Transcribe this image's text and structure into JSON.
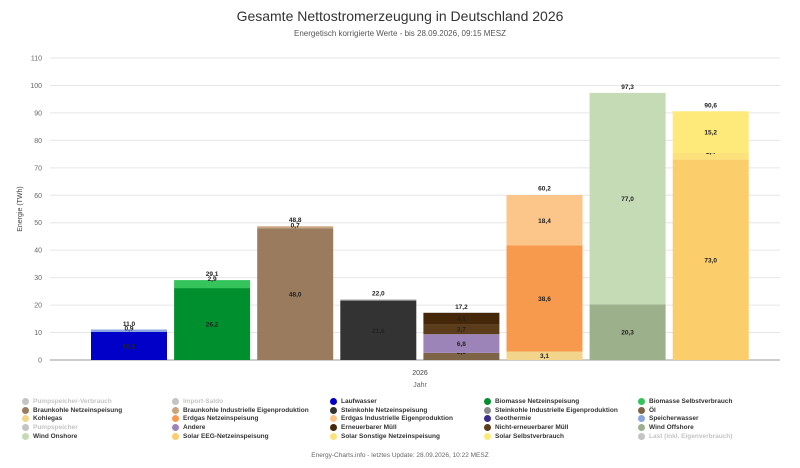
{
  "chart_data": {
    "type": "bar",
    "stacked": true,
    "title": "Gesamte Nettostromerzeugung in Deutschland 2026",
    "subtitle": "Energetisch korrigierte Werte - bis 28.09.2026, 09:15 MESZ",
    "xlabel": "Jahr",
    "ylabel": "Energie (TWh)",
    "categories": [
      "2026"
    ],
    "ylim": [
      0,
      110
    ],
    "yticks": [
      0,
      10,
      20,
      30,
      40,
      50,
      60,
      70,
      80,
      90,
      100,
      110
    ],
    "grid": true,
    "bars": [
      {
        "name": "Laufwasser",
        "total": 11.0,
        "total_label": "11,0",
        "segments": [
          {
            "series": "Laufwasser",
            "value": 10.2,
            "label": "10,2",
            "color": "#0000c8"
          },
          {
            "series": "Speicherwasser",
            "value": 0.9,
            "label": "0,9",
            "color": "#8aa6e0"
          }
        ]
      },
      {
        "name": "Biomasse",
        "total": 29.1,
        "total_label": "29,1",
        "segments": [
          {
            "series": "Biomasse Netzeinspeisung",
            "value": 26.2,
            "label": "26,2",
            "color": "#008f2e"
          },
          {
            "series": "Biomasse Selbstverbrauch",
            "value": 2.9,
            "label": "2,9",
            "color": "#35c35b"
          }
        ]
      },
      {
        "name": "Braunkohle",
        "total": 48.8,
        "total_label": "48,8",
        "segments": [
          {
            "series": "Braunkohle Netzeinspeisung",
            "value": 48.0,
            "label": "48,0",
            "color": "#9a7b5e"
          },
          {
            "series": "Braunkohle Industrielle Eigenproduktion",
            "value": 0.7,
            "label": "0,7",
            "color": "#c9a57d"
          }
        ]
      },
      {
        "name": "Steinkohle",
        "total": 22.0,
        "total_label": "22,0",
        "segments": [
          {
            "series": "Steinkohle Netzeinspeisung",
            "value": 21.6,
            "label": "21,6",
            "color": "#333333"
          },
          {
            "series": "Steinkohle Industrielle Eigenproduktion",
            "value": 0.4,
            "label": "",
            "color": "#888888"
          }
        ]
      },
      {
        "name": "Andere",
        "total": 17.2,
        "total_label": "17,2",
        "segments": [
          {
            "series": "Öl",
            "value": 2.6,
            "label": "2,6",
            "color": "#7d6446"
          },
          {
            "series": "Andere",
            "value": 6.8,
            "label": "6,8",
            "color": "#9d84b8"
          },
          {
            "series": "Nicht-erneuerbarer Müll",
            "value": 3.7,
            "label": "3,7",
            "color": "#5b3d1c"
          },
          {
            "series": "Erneuerbarer Müll",
            "value": 4.1,
            "label": "4,1",
            "color": "#45280a"
          }
        ]
      },
      {
        "name": "Erdgas",
        "total": 60.2,
        "total_label": "60,2",
        "segments": [
          {
            "series": "Kohlegas",
            "value": 3.1,
            "label": "3,1",
            "color": "#f2d48a"
          },
          {
            "series": "Erdgas Netzeinspeisung",
            "value": 38.6,
            "label": "38,6",
            "color": "#f89a4e"
          },
          {
            "series": "Erdgas Industrielle Eigenproduktion",
            "value": 18.4,
            "label": "18,4",
            "color": "#fcc68a"
          }
        ]
      },
      {
        "name": "Wind",
        "total": 97.3,
        "total_label": "97,3",
        "segments": [
          {
            "series": "Wind Offshore",
            "value": 20.3,
            "label": "20,3",
            "color": "#9db08c"
          },
          {
            "series": "Wind Onshore",
            "value": 77.0,
            "label": "77,0",
            "color": "#c4dbb5"
          }
        ]
      },
      {
        "name": "Solar",
        "total": 90.6,
        "total_label": "90,6",
        "segments": [
          {
            "series": "Solar EEG-Netzeinspeisung",
            "value": 73.0,
            "label": "73,0",
            "color": "#fccd6b"
          },
          {
            "series": "Solar Sonstige Netzeinspeisung",
            "value": 2.4,
            "label": "2,4",
            "color": "#fde27b"
          },
          {
            "series": "Solar Selbstverbrauch",
            "value": 15.2,
            "label": "15,2",
            "color": "#fdea7a"
          }
        ]
      }
    ],
    "legend": [
      {
        "label": "Pumpspeicher-Verbrauch",
        "color": "#c4c4c4",
        "dim": true
      },
      {
        "label": "Import-Saldo",
        "color": "#c4c4c4",
        "dim": true
      },
      {
        "label": "Laufwasser",
        "color": "#0000c8"
      },
      {
        "label": "Biomasse Netzeinspeisung",
        "color": "#008f2e"
      },
      {
        "label": "Biomasse Selbstverbrauch",
        "color": "#35c35b"
      },
      {
        "label": "Braunkohle Netzeinspeisung",
        "color": "#9a7b5e"
      },
      {
        "label": "Braunkohle Industrielle Eigenproduktion",
        "color": "#c9a57d"
      },
      {
        "label": "Steinkohle Netzeinspeisung",
        "color": "#333333"
      },
      {
        "label": "Steinkohle Industrielle Eigenproduktion",
        "color": "#888888"
      },
      {
        "label": "Öl",
        "color": "#7d6446"
      },
      {
        "label": "Kohlegas",
        "color": "#f2d48a"
      },
      {
        "label": "Erdgas Netzeinspeisung",
        "color": "#f89a4e"
      },
      {
        "label": "Erdgas Industrielle Eigenproduktion",
        "color": "#fcc68a"
      },
      {
        "label": "Geothermie",
        "color": "#3a2c8c"
      },
      {
        "label": "Speicherwasser",
        "color": "#8aa6e0"
      },
      {
        "label": "Pumpspeicher",
        "color": "#c4c4c4",
        "dim": true
      },
      {
        "label": "Andere",
        "color": "#9d84b8"
      },
      {
        "label": "Erneuerbarer Müll",
        "color": "#45280a"
      },
      {
        "label": "Nicht-erneuerbarer Müll",
        "color": "#5b3d1c"
      },
      {
        "label": "Wind Offshore",
        "color": "#9db08c"
      },
      {
        "label": "Wind Onshore",
        "color": "#c4dbb5"
      },
      {
        "label": "Solar EEG-Netzeinspeisung",
        "color": "#fccd6b"
      },
      {
        "label": "Solar Sonstige Netzeinspeisung",
        "color": "#fde27b"
      },
      {
        "label": "Solar Selbstverbrauch",
        "color": "#fdea7a"
      },
      {
        "label": "Last (inkl. Eigenverbrauch)",
        "color": "#c4c4c4",
        "dim": true
      }
    ]
  },
  "footer": "Energy-Charts.info - letztes Update: 28.09.2026, 10:22 MESZ"
}
